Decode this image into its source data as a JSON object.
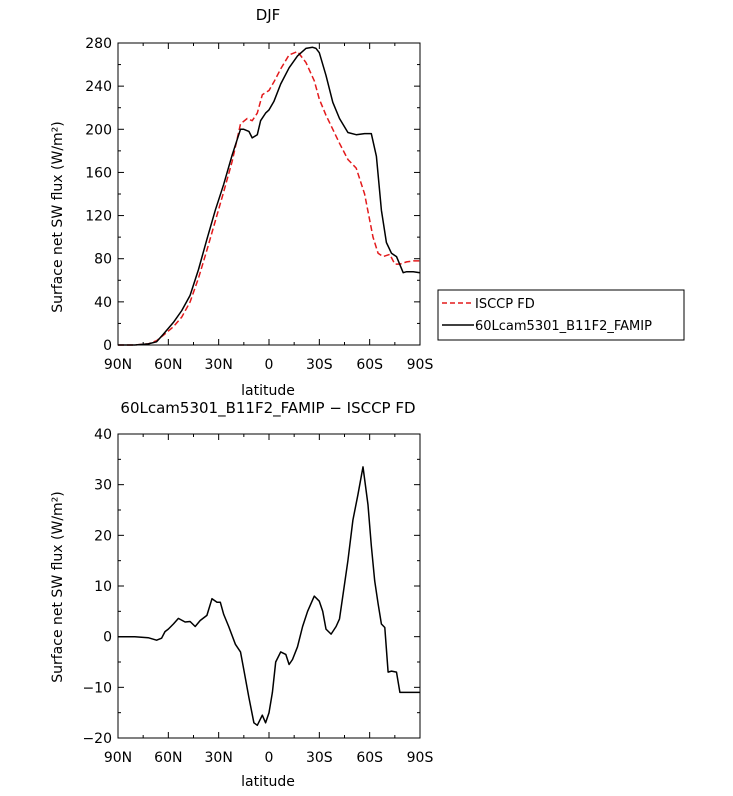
{
  "chart_data": [
    {
      "type": "line",
      "title": "DJF",
      "xlabel": "latitude",
      "ylabel": "Surface net SW flux (W/m²)",
      "xlim": [
        90,
        -90
      ],
      "ylim": [
        0,
        280
      ],
      "x_tick_values": [
        90,
        60,
        30,
        0,
        -30,
        -60,
        -90
      ],
      "x_tick_labels": [
        "90N",
        "60N",
        "30N",
        "0",
        "30S",
        "60S",
        "90S"
      ],
      "y_tick_values": [
        0,
        40,
        80,
        120,
        160,
        200,
        240,
        280
      ],
      "y_tick_labels": [
        "0",
        "40",
        "80",
        "120",
        "160",
        "200",
        "240",
        "280"
      ],
      "grid": false,
      "legend_position": "right, outside plot, lower",
      "series": [
        {
          "name": "ISCCP FD",
          "color": "#e31a1c",
          "style": "dashed",
          "x": [
            90,
            80,
            72,
            67,
            63,
            57,
            52,
            47,
            42,
            37,
            32,
            27,
            22,
            17,
            13,
            10,
            7,
            4,
            2,
            0,
            -3,
            -7,
            -12,
            -17,
            -22,
            -27,
            -30,
            -34,
            -38,
            -42,
            -47,
            -52,
            -57,
            -62,
            -65,
            -68,
            -72,
            -75,
            -78,
            -82,
            -86,
            -90
          ],
          "y": [
            0,
            0,
            1,
            4,
            9,
            17,
            26,
            40,
            62,
            88,
            115,
            142,
            170,
            205,
            210,
            208,
            215,
            232,
            234,
            236,
            244,
            256,
            269,
            272,
            262,
            245,
            228,
            213,
            200,
            187,
            172,
            164,
            140,
            100,
            85,
            82,
            84,
            75,
            75,
            77,
            78,
            78
          ]
        },
        {
          "name": "60Lcam5301_B11F2_FAMIP",
          "color": "#000000",
          "style": "solid",
          "x": [
            90,
            80,
            72,
            67,
            63,
            57,
            52,
            47,
            42,
            37,
            32,
            27,
            22,
            17,
            15,
            12,
            10,
            7,
            5,
            2,
            0,
            -3,
            -7,
            -12,
            -17,
            -22,
            -26,
            -28,
            -30,
            -34,
            -38,
            -42,
            -47,
            -52,
            -57,
            -61,
            -64,
            -67,
            -70,
            -73,
            -76,
            -80,
            -82,
            -86,
            -90
          ],
          "y": [
            0,
            0,
            1,
            3,
            10,
            21,
            32,
            46,
            70,
            98,
            125,
            149,
            176,
            200,
            200,
            198,
            192,
            195,
            208,
            215,
            218,
            226,
            242,
            257,
            268,
            275,
            276,
            275,
            271,
            250,
            225,
            210,
            197,
            195,
            196,
            196,
            175,
            125,
            95,
            85,
            82,
            67,
            68,
            68,
            67
          ]
        }
      ]
    },
    {
      "type": "line",
      "title": "60Lcam5301_B11F2_FAMIP − ISCCP FD",
      "xlabel": "latitude",
      "ylabel": "Surface net SW flux (W/m²)",
      "xlim": [
        90,
        -90
      ],
      "ylim": [
        -20,
        40
      ],
      "x_tick_values": [
        90,
        60,
        30,
        0,
        -30,
        -60,
        -90
      ],
      "x_tick_labels": [
        "90N",
        "60N",
        "30N",
        "0",
        "30S",
        "60S",
        "90S"
      ],
      "y_tick_values": [
        -20,
        -10,
        0,
        10,
        20,
        30,
        40
      ],
      "y_tick_labels": [
        "−20",
        "−10",
        "0",
        "10",
        "20",
        "30",
        "40"
      ],
      "grid": false,
      "series": [
        {
          "color": "#000000",
          "style": "solid",
          "x": [
            90,
            80,
            72,
            67,
            64,
            62,
            60,
            57,
            54,
            50,
            47,
            44,
            41,
            37,
            34,
            31,
            29,
            27,
            24,
            20,
            17,
            15,
            12,
            9,
            7,
            4,
            2,
            0,
            -2,
            -4,
            -7,
            -10,
            -12,
            -14,
            -17,
            -20,
            -23,
            -27,
            -30,
            -32,
            -34,
            -37,
            -40,
            -42,
            -44,
            -47,
            -50,
            -53,
            -56,
            -59,
            -61,
            -63,
            -65,
            -67,
            -69,
            -71,
            -73,
            -76,
            -78,
            -80,
            -83,
            -86,
            -90
          ],
          "y": [
            0,
            0,
            -0.2,
            -0.7,
            -0.3,
            1,
            1.5,
            2.5,
            3.6,
            2.9,
            3,
            2,
            3.2,
            4.2,
            7.5,
            6.8,
            6.8,
            4.4,
            2,
            -1.5,
            -3,
            -6.5,
            -12,
            -17,
            -17.5,
            -15.5,
            -17,
            -15,
            -11,
            -5,
            -3,
            -3.5,
            -5.5,
            -4.5,
            -2,
            2,
            5,
            8,
            7,
            5,
            1.5,
            0.5,
            2,
            3.5,
            8,
            15,
            23,
            28,
            33.5,
            26,
            18,
            11,
            6.5,
            2.5,
            1.8,
            -7,
            -6.8,
            -7,
            -11,
            -11,
            -11,
            -11,
            -11
          ]
        }
      ]
    }
  ]
}
